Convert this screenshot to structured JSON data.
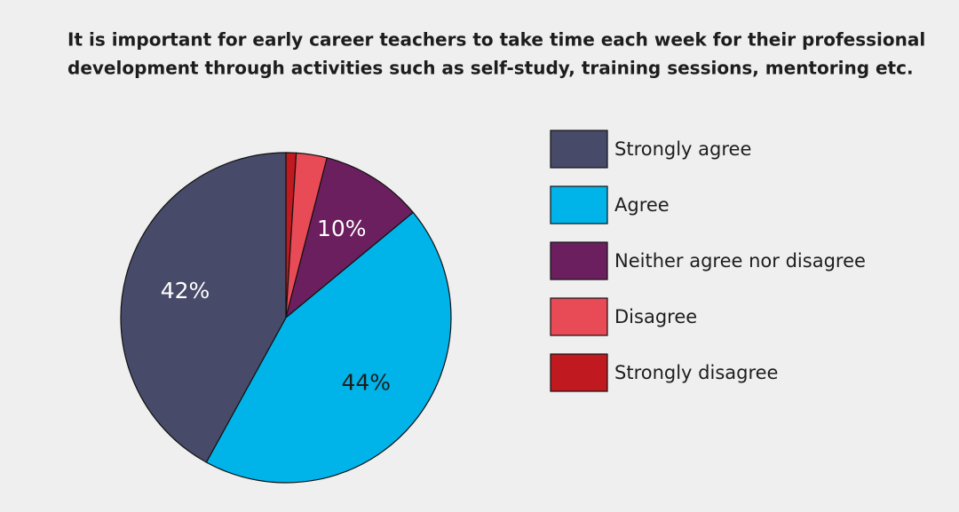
{
  "chart_data": {
    "type": "pie",
    "title": [
      "It is important for early career teachers to take time each week for their professional",
      "development through activities such as self-study, training sessions, mentoring etc."
    ],
    "categories": [
      "Strongly agree",
      "Agree",
      "Neither agree nor disagree",
      "Disagree",
      "Strongly disagree"
    ],
    "values": [
      42,
      44,
      10,
      3,
      1
    ],
    "value_labels": [
      "42%",
      "44%",
      "10%",
      null,
      null
    ],
    "colors": [
      "#474a68",
      "#00b4ea",
      "#6b1f5e",
      "#e84a56",
      "#c0191f"
    ],
    "legend": "right"
  }
}
